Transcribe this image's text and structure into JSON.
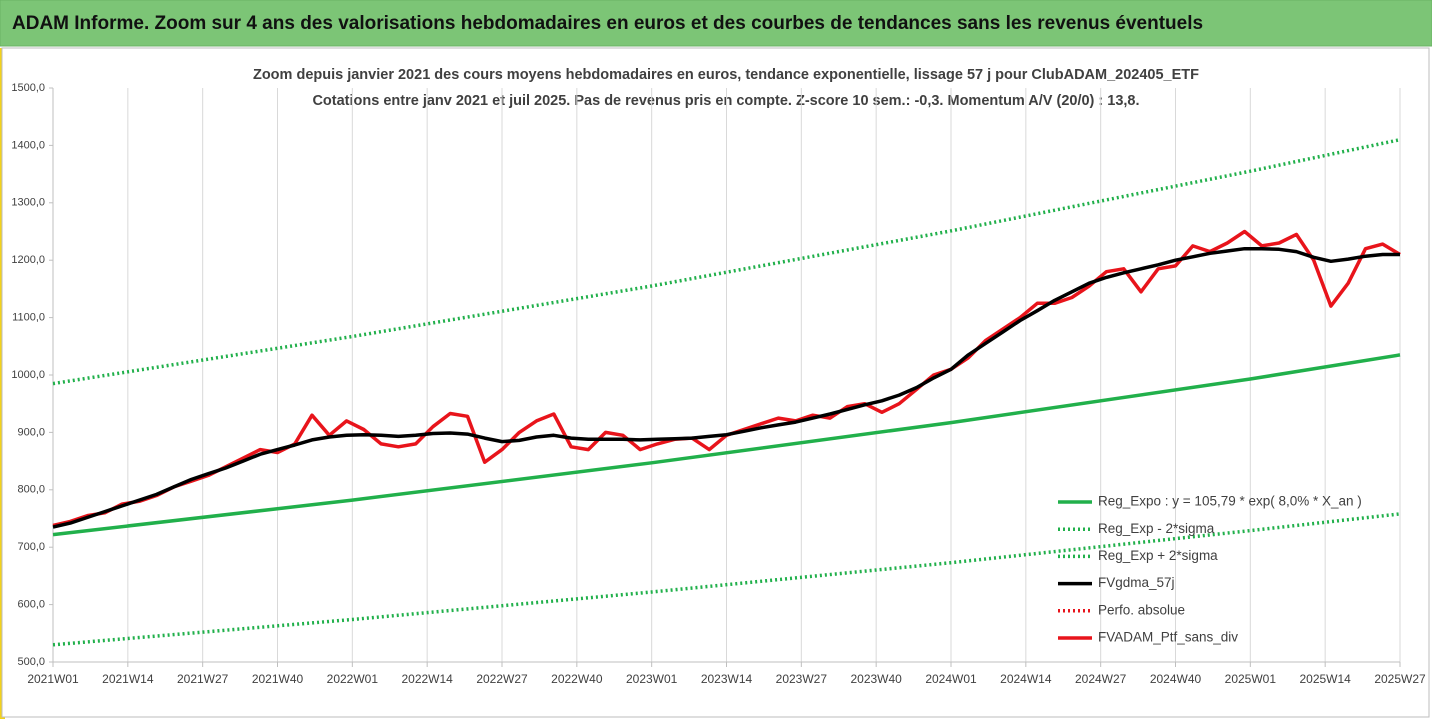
{
  "header": {
    "title": "ADAM Informe. Zoom sur 4 ans des valorisations hebdomadaires en euros et des courbes de tendances sans les revenus éventuels"
  },
  "chart_data": {
    "type": "line",
    "title": "Zoom depuis janvier 2021 des cours moyens hebdomadaires en euros, tendance exponentielle, lissage 57 j pour ClubADAM_202405_ETF",
    "subtitle": "Cotations entre janv 2021 et juil 2025. Pas de revenus pris en compte. Z-score 10 sem.: -0,3. Momentum A/V (20/0) : 13,8.",
    "x": [
      0,
      3,
      6,
      9,
      12,
      15,
      18,
      21,
      24,
      27,
      30,
      33,
      36,
      39,
      42,
      45,
      48,
      51,
      54,
      57,
      60,
      63,
      66,
      69,
      72,
      75,
      78,
      81,
      84,
      87,
      90,
      93,
      96,
      99,
      102,
      105,
      108,
      111,
      114,
      117,
      120,
      123,
      126,
      129,
      132,
      135,
      138,
      141,
      144,
      147,
      150,
      153,
      156,
      159,
      162,
      165,
      168,
      171,
      174,
      177,
      180,
      183,
      186,
      189,
      192,
      195,
      198,
      201,
      204,
      207,
      210,
      213,
      216,
      219,
      222,
      225,
      228,
      231,
      234
    ],
    "xlim": [
      0,
      234
    ],
    "xticks": [
      {
        "value": 0,
        "label": "2021W01"
      },
      {
        "value": 13,
        "label": "2021W14"
      },
      {
        "value": 26,
        "label": "2021W27"
      },
      {
        "value": 39,
        "label": "2021W40"
      },
      {
        "value": 52,
        "label": "2022W01"
      },
      {
        "value": 65,
        "label": "2022W14"
      },
      {
        "value": 78,
        "label": "2022W27"
      },
      {
        "value": 91,
        "label": "2022W40"
      },
      {
        "value": 104,
        "label": "2023W01"
      },
      {
        "value": 117,
        "label": "2023W14"
      },
      {
        "value": 130,
        "label": "2023W27"
      },
      {
        "value": 143,
        "label": "2023W40"
      },
      {
        "value": 156,
        "label": "2024W01"
      },
      {
        "value": 169,
        "label": "2024W14"
      },
      {
        "value": 182,
        "label": "2024W27"
      },
      {
        "value": 195,
        "label": "2024W40"
      },
      {
        "value": 208,
        "label": "2025W01"
      },
      {
        "value": 221,
        "label": "2025W14"
      },
      {
        "value": 234,
        "label": "2025W27"
      }
    ],
    "ylim": [
      500,
      1500
    ],
    "yticks": [
      {
        "value": 500,
        "label": "500,0"
      },
      {
        "value": 600,
        "label": "600,0"
      },
      {
        "value": 700,
        "label": "700,0"
      },
      {
        "value": 800,
        "label": "800,0"
      },
      {
        "value": 900,
        "label": "900,0"
      },
      {
        "value": 1000,
        "label": "1000,0"
      },
      {
        "value": 1100,
        "label": "1100,0"
      },
      {
        "value": 1200,
        "label": "1200,0"
      },
      {
        "value": 1300,
        "label": "1300,0"
      },
      {
        "value": 1400,
        "label": "1400,0"
      },
      {
        "value": 1500,
        "label": "1500,0"
      }
    ],
    "grid": "x",
    "legend": "lower right",
    "series": [
      {
        "name": "Reg_Expo : y = 105,79 * exp( 8,0% *  X_an )",
        "color": "#21b04b",
        "dash": "solid",
        "x": [
          0,
          52,
          104,
          156,
          208,
          234
        ],
        "values": [
          722,
          782,
          847,
          917,
          993,
          1035
        ]
      },
      {
        "name": "Reg_Exp - 2*sigma",
        "color": "#21b04b",
        "dash": "dotted",
        "x": [
          0,
          52,
          104,
          156,
          208,
          234
        ],
        "values": [
          530,
          574,
          622,
          673,
          729,
          758
        ]
      },
      {
        "name": "Reg_Exp + 2*sigma",
        "color": "#21b04b",
        "dash": "dotted",
        "x": [
          0,
          52,
          104,
          156,
          208,
          234
        ],
        "values": [
          985,
          1067,
          1155,
          1251,
          1355,
          1410
        ]
      },
      {
        "name": "FVgdma_57j",
        "color": "#000000",
        "dash": "solid",
        "values": [
          735,
          742,
          752,
          762,
          772,
          782,
          792,
          805,
          818,
          828,
          838,
          850,
          862,
          870,
          878,
          887,
          892,
          895,
          896,
          895,
          893,
          895,
          898,
          899,
          897,
          890,
          884,
          886,
          892,
          895,
          890,
          888,
          888,
          888,
          887,
          888,
          889,
          890,
          893,
          896,
          902,
          908,
          913,
          918,
          925,
          932,
          940,
          948,
          955,
          965,
          978,
          995,
          1010,
          1035,
          1055,
          1075,
          1095,
          1112,
          1130,
          1145,
          1160,
          1170,
          1178,
          1185,
          1192,
          1200,
          1206,
          1212,
          1216,
          1220,
          1220,
          1219,
          1215,
          1205,
          1198,
          1202,
          1207,
          1210,
          1210
        ]
      },
      {
        "name": "Perfo. absolue",
        "color": "#e8141b",
        "dash": "dotted",
        "x": [],
        "values": []
      },
      {
        "name": "FVADAM_Ptf_sans_div",
        "color": "#e8141b",
        "dash": "solid",
        "values": [
          738,
          745,
          755,
          760,
          775,
          780,
          790,
          805,
          815,
          825,
          840,
          855,
          870,
          865,
          880,
          930,
          895,
          920,
          905,
          880,
          875,
          880,
          910,
          933,
          928,
          848,
          870,
          900,
          920,
          932,
          875,
          870,
          900,
          895,
          870,
          880,
          888,
          890,
          870,
          895,
          905,
          915,
          925,
          920,
          930,
          925,
          945,
          950,
          935,
          950,
          975,
          1000,
          1010,
          1030,
          1060,
          1080,
          1100,
          1125,
          1125,
          1135,
          1155,
          1180,
          1185,
          1145,
          1185,
          1190,
          1225,
          1215,
          1230,
          1250,
          1225,
          1230,
          1245,
          1200,
          1120,
          1160,
          1220,
          1228,
          1210
        ]
      }
    ]
  }
}
